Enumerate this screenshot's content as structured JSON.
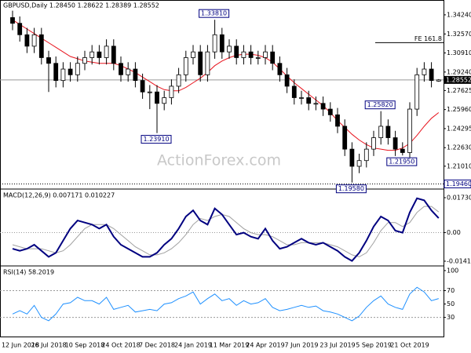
{
  "chart_data": [
    {
      "type": "candlestick",
      "title": "GBPUSD,Daily 1.28450 1.28622 1.28389 1.28552",
      "watermark": "ActionForex.com",
      "categories": [
        "12 Jun 2018",
        null,
        null,
        null,
        null,
        "26 Jul 2018",
        null,
        null,
        null,
        null,
        "10 Sep 2018",
        null,
        null,
        null,
        null,
        "24 Oct 2018",
        null,
        null,
        null,
        null,
        "7 Dec 2018",
        null,
        null,
        null,
        null,
        "24 Jan 2019",
        null,
        null,
        null,
        null,
        "11 Mar 2019",
        null,
        null,
        null,
        null,
        "24 Apr 2019",
        null,
        null,
        null,
        null,
        "7 Jun 2019",
        null,
        null,
        null,
        null,
        "23 Jul 2019",
        null,
        null,
        null,
        null,
        "5 Sep 2019",
        null,
        null,
        null,
        null,
        "21 Oct 2019",
        null,
        null,
        null,
        null
      ],
      "open": [
        1.34,
        1.335,
        1.325,
        1.315,
        1.325,
        1.305,
        1.3,
        1.285,
        1.295,
        1.29,
        1.3,
        1.305,
        1.31,
        1.305,
        1.315,
        1.3,
        1.29,
        1.295,
        1.285,
        1.275,
        1.275,
        1.265,
        1.27,
        1.28,
        1.29,
        1.305,
        1.31,
        1.29,
        1.31,
        1.325,
        1.31,
        1.315,
        1.305,
        1.31,
        1.305,
        1.305,
        1.31,
        1.3,
        1.29,
        1.28,
        1.27,
        1.27,
        1.265,
        1.265,
        1.26,
        1.255,
        1.245,
        1.225,
        1.21,
        1.215,
        1.225,
        1.235,
        1.245,
        1.235,
        1.225,
        1.222,
        1.26,
        1.29,
        1.295,
        1.2845
      ],
      "high": [
        1.346,
        1.341,
        1.331,
        1.331,
        1.331,
        1.311,
        1.306,
        1.301,
        1.301,
        1.306,
        1.311,
        1.316,
        1.316,
        1.321,
        1.321,
        1.306,
        1.301,
        1.301,
        1.291,
        1.281,
        1.281,
        1.276,
        1.286,
        1.296,
        1.311,
        1.316,
        1.316,
        1.316,
        1.3381,
        1.331,
        1.321,
        1.321,
        1.316,
        1.316,
        1.311,
        1.316,
        1.316,
        1.306,
        1.296,
        1.286,
        1.276,
        1.276,
        1.271,
        1.271,
        1.266,
        1.261,
        1.251,
        1.231,
        1.221,
        1.231,
        1.241,
        1.2582,
        1.251,
        1.241,
        1.231,
        1.266,
        1.296,
        1.301,
        1.301,
        1.28622
      ],
      "low": [
        1.329,
        1.319,
        1.309,
        1.309,
        1.299,
        1.275,
        1.279,
        1.279,
        1.284,
        1.284,
        1.294,
        1.299,
        1.299,
        1.299,
        1.294,
        1.284,
        1.284,
        1.279,
        1.269,
        1.26,
        1.2391,
        1.259,
        1.264,
        1.274,
        1.284,
        1.299,
        1.284,
        1.284,
        1.304,
        1.304,
        1.304,
        1.299,
        1.299,
        1.299,
        1.299,
        1.299,
        1.294,
        1.284,
        1.274,
        1.264,
        1.264,
        1.259,
        1.259,
        1.254,
        1.249,
        1.239,
        1.219,
        1.1958,
        1.204,
        1.209,
        1.219,
        1.229,
        1.229,
        1.219,
        1.2195,
        1.216,
        1.254,
        1.284,
        1.279,
        1.28389
      ],
      "close": [
        1.335,
        1.325,
        1.315,
        1.325,
        1.305,
        1.3,
        1.285,
        1.295,
        1.29,
        1.3,
        1.305,
        1.31,
        1.305,
        1.315,
        1.3,
        1.29,
        1.295,
        1.285,
        1.275,
        1.275,
        1.265,
        1.27,
        1.28,
        1.29,
        1.305,
        1.31,
        1.29,
        1.31,
        1.325,
        1.31,
        1.315,
        1.305,
        1.31,
        1.305,
        1.305,
        1.31,
        1.3,
        1.29,
        1.28,
        1.27,
        1.27,
        1.265,
        1.265,
        1.26,
        1.255,
        1.245,
        1.225,
        1.21,
        1.215,
        1.225,
        1.235,
        1.245,
        1.235,
        1.225,
        1.222,
        1.26,
        1.29,
        1.295,
        1.285,
        1.28552
      ],
      "series": [
        {
          "color": "#e8141e",
          "values": [
            1.338,
            1.334,
            1.33,
            1.326,
            1.322,
            1.318,
            1.314,
            1.31,
            1.306,
            1.304,
            1.302,
            1.301,
            1.3,
            1.3,
            1.3,
            1.298,
            1.295,
            1.292,
            1.288,
            1.284,
            1.28,
            1.277,
            1.276,
            1.276,
            1.279,
            1.283,
            1.287,
            1.292,
            1.298,
            1.302,
            1.305,
            1.307,
            1.308,
            1.308,
            1.307,
            1.305,
            1.301,
            1.295,
            1.289,
            1.283,
            1.278,
            1.273,
            1.268,
            1.263,
            1.257,
            1.25,
            1.244,
            1.238,
            1.233,
            1.229,
            1.226,
            1.225,
            1.224,
            1.224,
            1.226,
            1.23,
            1.237,
            1.245,
            1.252,
            1.257
          ]
        }
      ],
      "annotations": [
        {
          "label": "1.33810",
          "value": 1.3381
        },
        {
          "label": "1.23910",
          "value": 1.2391
        },
        {
          "label": "1.25820",
          "value": 1.2582
        },
        {
          "label": "1.21950",
          "value": 1.2195
        },
        {
          "label": "1.19580",
          "value": 1.1958
        }
      ],
      "levels": [
        {
          "label": "FE 161.8",
          "value": 1.3181
        }
      ],
      "support": {
        "label": "1.19460",
        "value": 1.1946
      },
      "ylim": [
        1.1908,
        1.354
      ],
      "yticks": [
        {
          "value": 1.3424,
          "label": "1.34240"
        },
        {
          "value": 1.3257,
          "label": "1.32570"
        },
        {
          "value": 1.3091,
          "label": "1.30910"
        },
        {
          "value": 1.2924,
          "label": "1.29240"
        },
        1.27625,
        {
          "value": 1.2596,
          "label": "1.25960"
        },
        1.24295,
        {
          "value": 1.2263,
          "label": "1.22630"
        },
        {
          "value": 1.2101,
          "label": "1.21010"
        }
      ]
    },
    {
      "type": "macd",
      "title": "MACD(12,26,9) 0.007171 0.010227",
      "series": [
        {
          "color": "#000080",
          "values": [
            -0.008,
            -0.009,
            -0.008,
            -0.006,
            -0.009,
            -0.012,
            -0.01,
            -0.004,
            0.002,
            0.006,
            0.005,
            0.004,
            0.002,
            0.004,
            -0.002,
            -0.006,
            -0.008,
            -0.01,
            -0.012,
            -0.012,
            -0.01,
            -0.006,
            -0.003,
            0.002,
            0.008,
            0.011,
            0.006,
            0.004,
            0.012,
            0.009,
            0.004,
            -0.001,
            0.0,
            -0.002,
            -0.003,
            0.002,
            -0.004,
            -0.008,
            -0.007,
            -0.005,
            -0.003,
            -0.005,
            -0.006,
            -0.005,
            -0.007,
            -0.009,
            -0.012,
            -0.014,
            -0.01,
            -0.004,
            0.003,
            0.008,
            0.006,
            0.001,
            0.0,
            0.01,
            0.017,
            0.016,
            0.011,
            0.007171
          ]
        },
        {
          "color": "#a0a0a0",
          "values": [
            -0.006,
            -0.007,
            -0.008,
            -0.008,
            -0.008,
            -0.009,
            -0.01,
            -0.009,
            -0.006,
            -0.002,
            0.002,
            0.004,
            0.004,
            0.004,
            0.002,
            -0.001,
            -0.004,
            -0.007,
            -0.009,
            -0.011,
            -0.011,
            -0.01,
            -0.008,
            -0.005,
            -0.001,
            0.004,
            0.007,
            0.006,
            0.008,
            0.009,
            0.008,
            0.005,
            0.002,
            0.0,
            -0.001,
            -0.001,
            -0.002,
            -0.004,
            -0.006,
            -0.006,
            -0.005,
            -0.005,
            -0.005,
            -0.005,
            -0.006,
            -0.007,
            -0.009,
            -0.011,
            -0.012,
            -0.01,
            -0.005,
            0.001,
            0.005,
            0.005,
            0.003,
            0.005,
            0.01,
            0.013,
            0.013,
            0.010227
          ]
        }
      ],
      "ylim": [
        -0.0161,
        0.0208
      ],
      "yticks": [
        0.017302,
        {
          "value": 0,
          "label": "0.00"
        },
        -0.014148
      ]
    },
    {
      "type": "rsi",
      "title": "RSI(14) 58.2019",
      "series": [
        {
          "color": "#1e90ff",
          "values": [
            35,
            40,
            35,
            48,
            30,
            25,
            35,
            50,
            52,
            60,
            55,
            55,
            50,
            60,
            42,
            45,
            48,
            38,
            40,
            42,
            40,
            50,
            52,
            58,
            62,
            68,
            50,
            58,
            65,
            55,
            58,
            48,
            55,
            50,
            52,
            58,
            45,
            40,
            42,
            45,
            48,
            45,
            47,
            40,
            38,
            35,
            30,
            25,
            32,
            45,
            55,
            62,
            50,
            45,
            42,
            65,
            75,
            68,
            55,
            58.2019
          ]
        }
      ],
      "ylim": [
        1.4,
        104.6
      ],
      "yticks": [
        100,
        70,
        50,
        30
      ]
    }
  ]
}
